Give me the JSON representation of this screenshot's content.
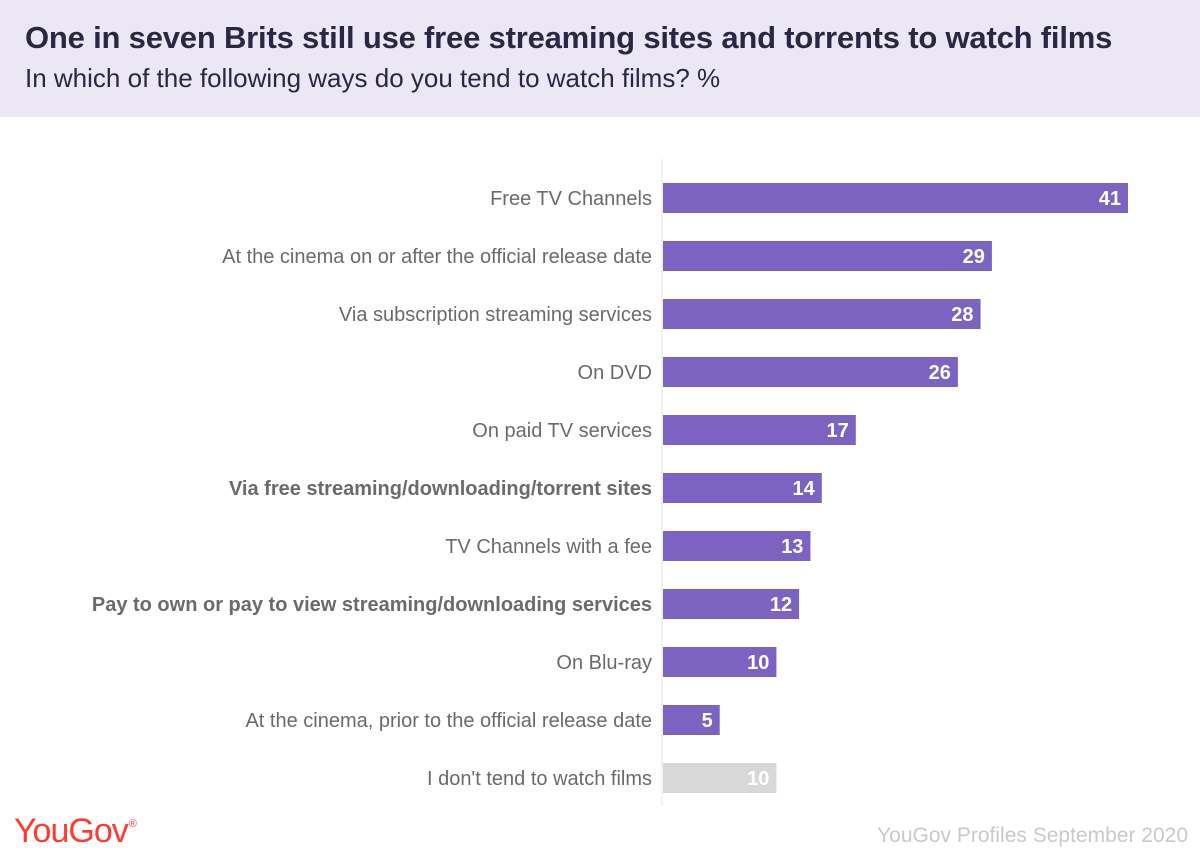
{
  "header": {
    "title": "One in seven Brits still use free streaming sites and torrents to watch films",
    "subtitle": "In which of the following ways do you tend to watch films? %"
  },
  "footer": {
    "logo": "YouGov",
    "source": "YouGov Profiles September 2020"
  },
  "colors": {
    "bar": "#7c62c1",
    "bar_muted": "#d8d8d8",
    "header_bg": "#ebe7f5",
    "label_text": "#6b6b6b",
    "logo": "#ff3b2f"
  },
  "chart_data": {
    "type": "bar",
    "orientation": "horizontal",
    "categories": [
      "Free TV Channels",
      "At the cinema on or after the official release date",
      "Via subscription streaming services",
      "On DVD",
      "On paid TV services",
      "Via free streaming/downloading/torrent sites",
      "TV Channels with a fee",
      "Pay to own or pay to view streaming/downloading services",
      "On Blu-ray",
      "At the cinema, prior to the official release date",
      "I don't tend to watch films"
    ],
    "values": [
      41,
      29,
      28,
      26,
      17,
      14,
      13,
      12,
      10,
      5,
      10
    ],
    "bold_categories": [
      "Via free streaming/downloading/torrent sites",
      "Pay to own or pay to view streaming/downloading services"
    ],
    "muted_categories": [
      "I don't tend to watch films"
    ],
    "data_labels": true,
    "xlim": [
      0,
      41
    ],
    "grid": false
  }
}
